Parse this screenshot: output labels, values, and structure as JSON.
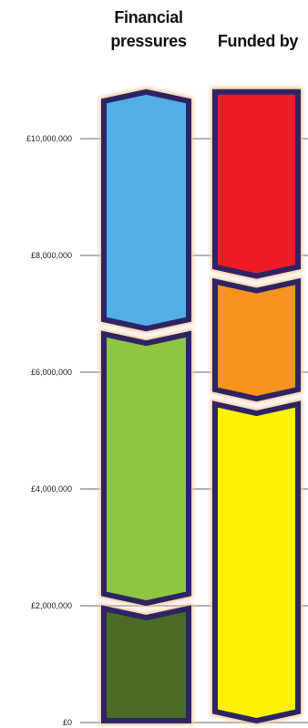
{
  "chart_data": {
    "type": "bar",
    "stacked": true,
    "categories": [
      "Financial pressures",
      "Funded by"
    ],
    "ylim": [
      0,
      10500000
    ],
    "yticks": [
      {
        "value": 0,
        "label": "£0"
      },
      {
        "value": 2000000,
        "label": "£2,000,000"
      },
      {
        "value": 4000000,
        "label": "£4,000,000"
      },
      {
        "value": 6000000,
        "label": "£6,000,000"
      },
      {
        "value": 8000000,
        "label": "£8,000,000"
      },
      {
        "value": 10000000,
        "label": "£10,000,000"
      }
    ],
    "stacks": [
      {
        "category": "Financial pressures",
        "segments": [
          {
            "from": 0,
            "to": 2000000,
            "color": "#4a6b22"
          },
          {
            "from": 2000000,
            "to": 6700000,
            "color": "#8ec641"
          },
          {
            "from": 6700000,
            "to": 10800000,
            "color": "#53aee5"
          }
        ]
      },
      {
        "category": "Funded by",
        "segments": [
          {
            "from": 0,
            "to": 5500000,
            "color": "#fff200"
          },
          {
            "from": 5500000,
            "to": 7600000,
            "color": "#f7941d"
          },
          {
            "from": 7600000,
            "to": 10800000,
            "color": "#ed1c24"
          }
        ]
      }
    ],
    "outline_color": "#2e2464",
    "glow_color": "#f4c9a1"
  }
}
